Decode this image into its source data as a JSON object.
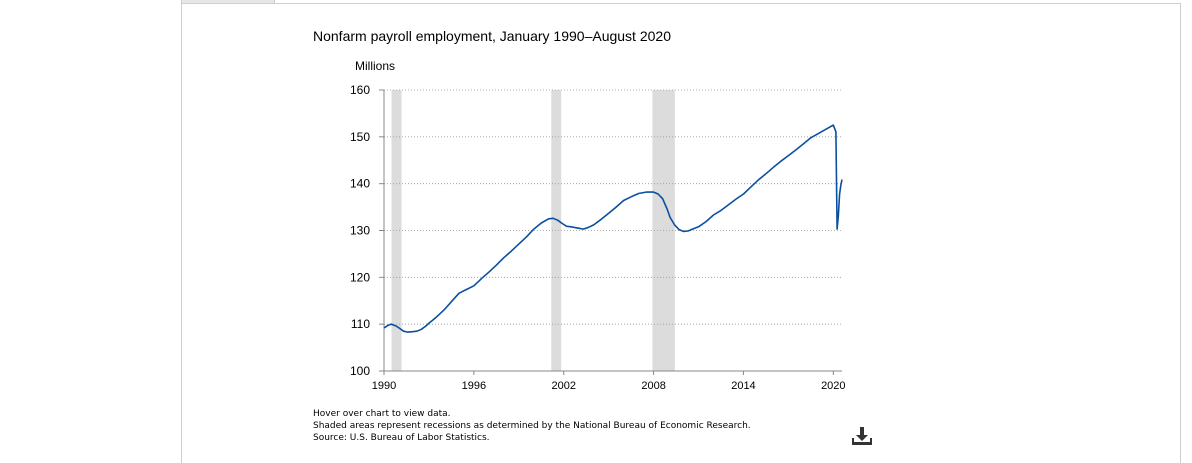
{
  "page": {
    "notes": [
      "Hover over chart to view data.",
      "Shaded areas represent recessions as determined by the National Bureau of Economic Research.",
      "Source: U.S. Bureau of Labor Statistics."
    ],
    "download_icon": "download-icon"
  },
  "chart_data": {
    "type": "line",
    "title": "Nonfarm payroll employment, January 1990–August 2020",
    "ylabel": "Millions",
    "xlabel": "",
    "xlim": [
      1990.0,
      2020.58
    ],
    "ylim": [
      100,
      160
    ],
    "yticks": [
      100,
      110,
      120,
      130,
      140,
      150,
      160
    ],
    "xticks": [
      1990,
      1996,
      2002,
      2008,
      2014,
      2020
    ],
    "grid": "horizontal-dotted",
    "legend": "none",
    "line_color": "#0b4fa0",
    "recession_color": "#dcdcdc",
    "recessions": [
      [
        1990.5,
        1991.17
      ],
      [
        2001.17,
        2001.83
      ],
      [
        2007.92,
        2009.42
      ]
    ],
    "series": [
      {
        "x": [
          1990.0,
          1990.3,
          1990.5,
          1990.8,
          1991.0,
          1991.3,
          1991.6,
          1991.9,
          1992.2,
          1992.5,
          1992.8,
          1993.0,
          1993.5,
          1994.0,
          1994.5,
          1995.0,
          1995.5,
          1996.0,
          1996.5,
          1997.0,
          1997.5,
          1998.0,
          1998.5,
          1999.0,
          1999.5,
          2000.0,
          2000.5,
          2001.0,
          2001.3,
          2001.6,
          2001.9,
          2002.2,
          2002.5,
          2002.8,
          2003.0,
          2003.3,
          2003.6,
          2004.0,
          2004.5,
          2005.0,
          2005.5,
          2006.0,
          2006.5,
          2007.0,
          2007.5,
          2008.0,
          2008.3,
          2008.6,
          2008.9,
          2009.1,
          2009.4,
          2009.7,
          2010.0,
          2010.3,
          2010.6,
          2011.0,
          2011.5,
          2012.0,
          2012.5,
          2013.0,
          2013.5,
          2014.0,
          2014.5,
          2015.0,
          2015.5,
          2016.0,
          2016.5,
          2017.0,
          2017.5,
          2018.0,
          2018.5,
          2019.0,
          2019.5,
          2020.0,
          2020.17,
          2020.25,
          2020.33,
          2020.42,
          2020.5,
          2020.58
        ],
        "values": [
          109.2,
          109.8,
          110.0,
          109.6,
          109.2,
          108.5,
          108.3,
          108.4,
          108.5,
          108.9,
          109.6,
          110.2,
          111.5,
          113.0,
          114.8,
          116.6,
          117.4,
          118.2,
          119.7,
          121.1,
          122.6,
          124.2,
          125.6,
          127.1,
          128.6,
          130.3,
          131.6,
          132.5,
          132.6,
          132.2,
          131.5,
          130.9,
          130.8,
          130.6,
          130.5,
          130.3,
          130.6,
          131.2,
          132.4,
          133.7,
          135.0,
          136.4,
          137.2,
          137.9,
          138.2,
          138.2,
          137.8,
          136.8,
          134.6,
          132.8,
          131.2,
          130.2,
          129.8,
          129.9,
          130.3,
          130.8,
          131.9,
          133.3,
          134.3,
          135.5,
          136.7,
          137.8,
          139.3,
          140.8,
          142.1,
          143.5,
          144.8,
          146.0,
          147.2,
          148.5,
          149.8,
          150.7,
          151.6,
          152.5,
          151.1,
          130.3,
          133.0,
          137.8,
          139.6,
          140.9
        ]
      }
    ]
  }
}
